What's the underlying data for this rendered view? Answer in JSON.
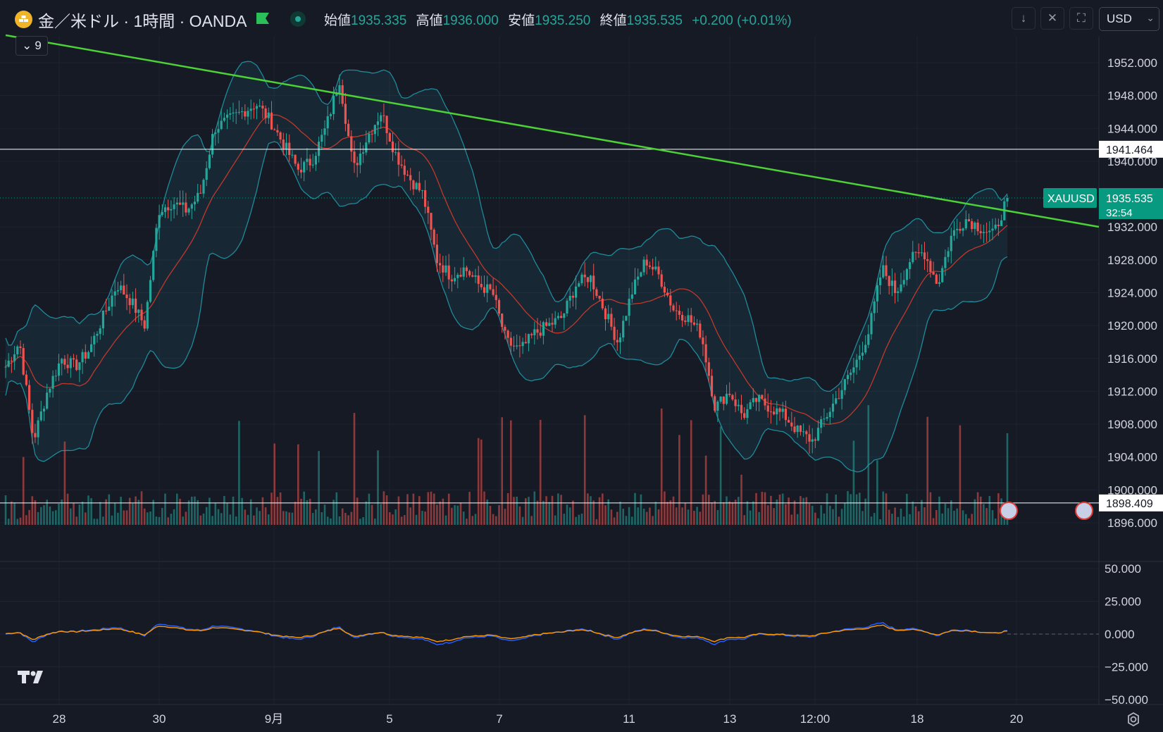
{
  "header": {
    "symbol_title": "金／米ドル · 1時間 · OANDA",
    "ohlc": [
      {
        "label": "始値",
        "value": "1935.335"
      },
      {
        "label": "高値",
        "value": "1936.000"
      },
      {
        "label": "安値",
        "value": "1935.250"
      },
      {
        "label": "終値",
        "value": "1935.535"
      }
    ],
    "change": "+0.200 (+0.01%)",
    "currency": "USD",
    "indicator_count": "9"
  },
  "price_axis": {
    "ticks": [
      "1952.000",
      "1948.000",
      "1944.000",
      "1940.000",
      "1932.000",
      "1928.000",
      "1924.000",
      "1920.000",
      "1916.000",
      "1912.000",
      "1908.000",
      "1904.000",
      "1900.000",
      "1896.000"
    ],
    "tick_values": [
      1952,
      1948,
      1944,
      1940,
      1932,
      1928,
      1924,
      1920,
      1916,
      1912,
      1908,
      1904,
      1900,
      1896
    ],
    "hline_upper": "1941.464",
    "hline_lower": "1898.409",
    "symbol_badge": "XAUUSD",
    "last_price": "1935.535",
    "countdown": "32:54"
  },
  "osc_axis": {
    "ticks": [
      "50.000",
      "25.000",
      "0.000",
      "−25.000",
      "−50.000"
    ],
    "tick_values": [
      50,
      25,
      0,
      -25,
      -50
    ]
  },
  "time_axis": {
    "ticks": [
      "28",
      "30",
      "9月",
      "5",
      "7",
      "11",
      "13",
      "12:00",
      "18",
      "20"
    ]
  },
  "colors": {
    "background": "#161a25",
    "up": "#26a69a",
    "down": "#ef5350",
    "trendline": "#4cd137",
    "bb_band": "#1f8a9a",
    "bb_mid": "#c0392b",
    "badge": "#089981"
  },
  "chart_data": {
    "type": "candlestick",
    "title": "金／米ドル · 1時間 · OANDA",
    "ylim": [
      1895,
      1954
    ],
    "close_path": [
      [
        "28",
        1915
      ],
      [
        "",
        1918
      ],
      [
        "",
        1906
      ],
      [
        "",
        1912
      ],
      [
        "",
        1916
      ],
      [
        "",
        1915
      ],
      [
        "",
        1917
      ],
      [
        "",
        1921
      ],
      [
        "",
        1925
      ],
      [
        "",
        1923
      ],
      [
        "",
        1920
      ],
      [
        "30",
        1934
      ],
      [
        "",
        1935
      ],
      [
        "",
        1934
      ],
      [
        "",
        1936
      ],
      [
        "",
        1944
      ],
      [
        "",
        1945
      ],
      [
        "",
        1946
      ],
      [
        "",
        1947
      ],
      [
        "",
        1945
      ],
      [
        "9月",
        1942
      ],
      [
        "",
        1939
      ],
      [
        "",
        1940
      ],
      [
        "",
        1944
      ],
      [
        "",
        1950
      ],
      [
        "",
        1939
      ],
      [
        "",
        1943
      ],
      [
        "5",
        1946
      ],
      [
        "",
        1941
      ],
      [
        "",
        1938
      ],
      [
        "",
        1936
      ],
      [
        "",
        1928
      ],
      [
        "",
        1926
      ],
      [
        "",
        1927
      ],
      [
        "",
        1925
      ],
      [
        "7",
        1924
      ],
      [
        "",
        1918
      ],
      [
        "",
        1917
      ],
      [
        "",
        1919
      ],
      [
        "",
        1920
      ],
      [
        "",
        1921
      ],
      [
        "",
        1925
      ],
      [
        "",
        1926
      ],
      [
        "",
        1922
      ],
      [
        "",
        1918
      ],
      [
        "11",
        1924
      ],
      [
        "",
        1928
      ],
      [
        "",
        1926
      ],
      [
        "",
        1922
      ],
      [
        "",
        1921
      ],
      [
        "13",
        1919
      ],
      [
        "",
        1910
      ],
      [
        "",
        1912
      ],
      [
        "",
        1909
      ],
      [
        "",
        1911
      ],
      [
        "",
        1910
      ],
      [
        "12:00",
        1909
      ],
      [
        "",
        1907
      ],
      [
        "",
        1906
      ],
      [
        "",
        1909
      ],
      [
        "",
        1912
      ],
      [
        "",
        1915
      ],
      [
        "",
        1919
      ],
      [
        "18",
        1927
      ],
      [
        "",
        1924
      ],
      [
        "",
        1928
      ],
      [
        "",
        1929
      ],
      [
        "",
        1925
      ],
      [
        "",
        1931
      ],
      [
        "",
        1933
      ],
      [
        "",
        1932
      ],
      [
        "",
        1931
      ],
      [
        "",
        1935.535
      ]
    ]
  }
}
